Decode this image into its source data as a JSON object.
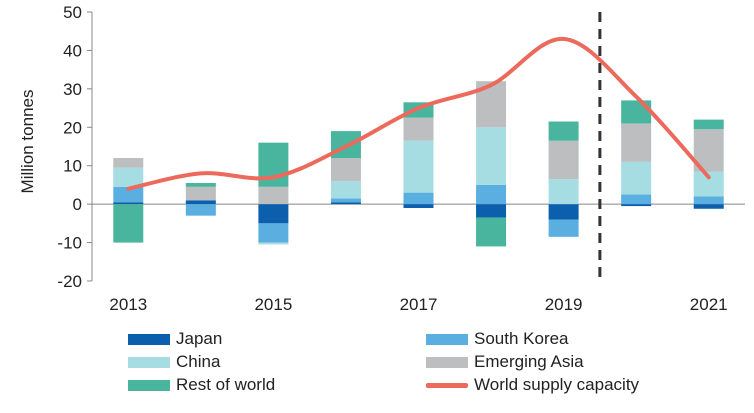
{
  "chart_data": {
    "type": "bar",
    "stacked": true,
    "categories": [
      "2013",
      "2014",
      "2015",
      "2016",
      "2017",
      "2018",
      "2019",
      "2020",
      "2021"
    ],
    "x_tick_labels": [
      "2013",
      "2015",
      "2017",
      "2019",
      "2021"
    ],
    "ylabel": "Million tonnes",
    "ylim": [
      -20,
      50
    ],
    "yticks": [
      -20,
      -10,
      0,
      10,
      20,
      30,
      40,
      50
    ],
    "series": [
      {
        "name": "Japan",
        "color": "#0b5fad",
        "values": [
          0.5,
          1.0,
          -5.0,
          0.5,
          -1.0,
          -3.5,
          -4.0,
          -0.5,
          -1.2
        ]
      },
      {
        "name": "South Korea",
        "color": "#5aafe0",
        "values": [
          4.0,
          -3.0,
          -5.0,
          1.0,
          3.0,
          5.0,
          -4.5,
          2.5,
          2.0
        ]
      },
      {
        "name": "China",
        "color": "#a5dde2",
        "values": [
          5.0,
          0.0,
          -0.5,
          4.5,
          13.5,
          15.0,
          6.5,
          8.5,
          6.5
        ]
      },
      {
        "name": "Emerging Asia",
        "color": "#bcbec0",
        "values": [
          2.5,
          3.5,
          4.5,
          6.0,
          6.0,
          12.0,
          10.0,
          10.0,
          11.0
        ]
      },
      {
        "name": "Rest of world",
        "color": "#4ab59e",
        "values": [
          -10.0,
          1.0,
          11.5,
          7.0,
          4.0,
          -7.5,
          5.0,
          6.0,
          2.5
        ]
      }
    ],
    "line_series": {
      "name": "World supply capacity",
      "color": "#ec6a5c",
      "values": [
        4,
        8,
        7,
        15,
        25,
        31,
        43,
        28,
        7
      ]
    },
    "forecast_divider_after": "2019",
    "grid": false,
    "legend_position": "bottom"
  }
}
